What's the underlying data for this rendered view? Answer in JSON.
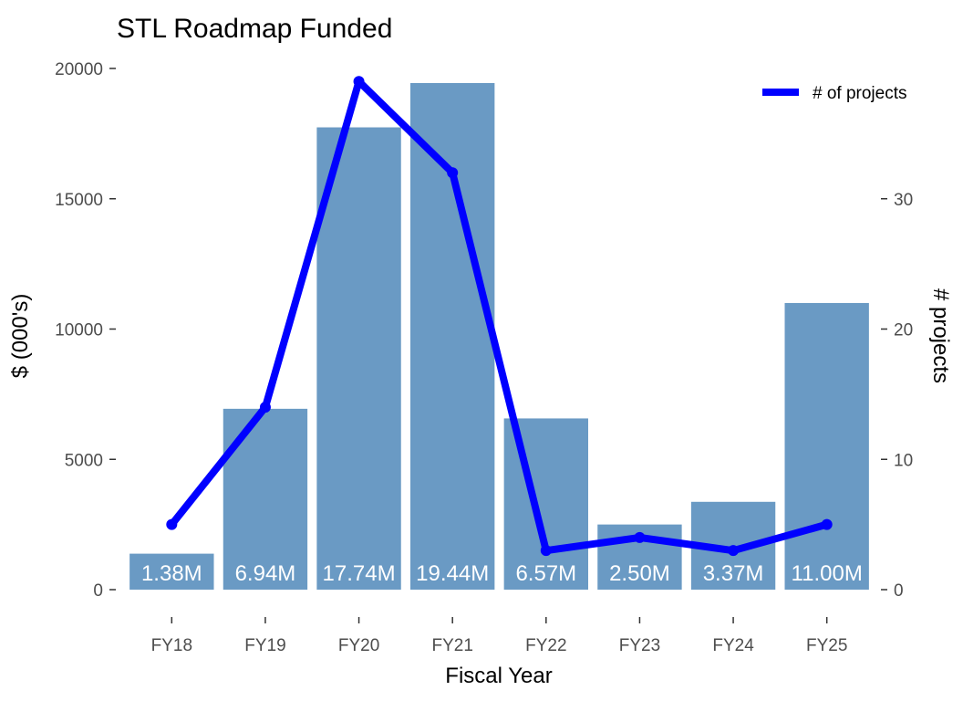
{
  "chart_data": {
    "type": "bar",
    "title": "STL Roadmap Funded",
    "xlabel": "Fiscal Year",
    "ylabel": "$ (000's)",
    "y2label": "# projects",
    "categories": [
      "FY18",
      "FY19",
      "FY20",
      "FY21",
      "FY22",
      "FY23",
      "FY24",
      "FY25"
    ],
    "ylim": [
      0,
      20000
    ],
    "yticks": [
      0,
      5000,
      10000,
      15000,
      20000
    ],
    "y2lim": [
      0,
      40
    ],
    "y2ticks": [
      0,
      10,
      20,
      30
    ],
    "bar_series": {
      "values": [
        1380,
        6940,
        17740,
        19440,
        6570,
        2500,
        3370,
        11000
      ],
      "labels": [
        "1.38M",
        "6.94M",
        "17.74M",
        "19.44M",
        "6.57M",
        "2.50M",
        "3.37M",
        "11.00M"
      ],
      "color": "#6a9ac4"
    },
    "line_series": {
      "name": "# of projects",
      "values": [
        5,
        14,
        39,
        32,
        3,
        4,
        3,
        5
      ],
      "color": "#0000ff"
    },
    "grid": false,
    "legend_position": "top-right"
  }
}
